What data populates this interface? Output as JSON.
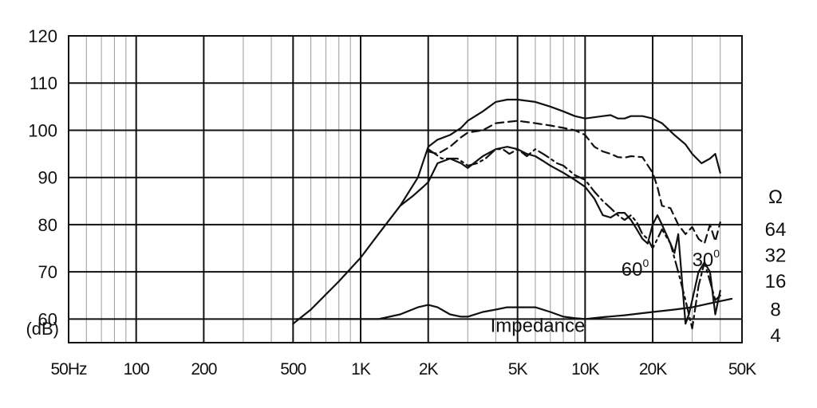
{
  "chart_data": {
    "type": "line",
    "xscale": "log",
    "xlim": [
      50,
      50000
    ],
    "ylim": [
      55,
      120
    ],
    "grid": true,
    "x_ticks": [
      {
        "value": 50,
        "label": "50Hz"
      },
      {
        "value": 100,
        "label": "100"
      },
      {
        "value": 200,
        "label": "200"
      },
      {
        "value": 500,
        "label": "500"
      },
      {
        "value": 1000,
        "label": "1K"
      },
      {
        "value": 2000,
        "label": "2K"
      },
      {
        "value": 5000,
        "label": "5K"
      },
      {
        "value": 10000,
        "label": "10K"
      },
      {
        "value": 20000,
        "label": "20K"
      },
      {
        "value": 50000,
        "label": "50K"
      }
    ],
    "y_ticks": [
      {
        "value": 120,
        "label": "120"
      },
      {
        "value": 110,
        "label": "110"
      },
      {
        "value": 100,
        "label": "100"
      },
      {
        "value": 90,
        "label": "90"
      },
      {
        "value": 80,
        "label": "80"
      },
      {
        "value": 70,
        "label": "70"
      },
      {
        "value": 60,
        "label": "60"
      }
    ],
    "y_unit_label": "(dB)",
    "impedance_axis": {
      "unit": "Ω",
      "ticks": [
        {
          "label": "64",
          "at_db": 79
        },
        {
          "label": "32",
          "at_db": 73.5
        },
        {
          "label": "16",
          "at_db": 68
        },
        {
          "label": "8",
          "at_db": 62
        },
        {
          "label": "4",
          "at_db": 56.5
        }
      ]
    },
    "series": [
      {
        "style": "solid",
        "x": [
          500,
          600,
          800,
          1000,
          1200,
          1500,
          1800,
          2000,
          2200,
          2500,
          2800,
          3000,
          3500,
          4000,
          4500,
          5000,
          6000,
          7000,
          8000,
          9000,
          10000,
          12000,
          13000,
          14000,
          15000,
          16000,
          18000,
          20000,
          22000,
          25000,
          28000,
          30000,
          33000,
          36000,
          38000,
          40000
        ],
        "y": [
          59,
          62,
          68,
          73,
          78,
          84,
          90,
          96.5,
          98,
          99,
          100.5,
          102,
          104,
          106,
          106.5,
          106.5,
          106,
          105,
          104,
          103,
          102.5,
          103,
          103.2,
          102.5,
          102.5,
          103,
          103,
          102.5,
          101.5,
          99,
          97,
          95,
          93,
          94,
          95,
          91
        ]
      },
      {
        "style": "dashed",
        "name_label": "30",
        "x": [
          2000,
          2200,
          2500,
          2800,
          3000,
          3500,
          4000,
          5000,
          6000,
          7000,
          8000,
          9000,
          10000,
          11000,
          12000,
          13000,
          14000,
          15000,
          16000,
          18000,
          20000,
          21000,
          22000,
          24000,
          26000,
          28000,
          30000,
          32000,
          34000,
          36000,
          38000,
          40000
        ],
        "y": [
          95.5,
          95,
          96.5,
          98.5,
          99.5,
          100,
          101.5,
          102,
          101.5,
          101,
          100.5,
          100,
          99,
          96.5,
          95.5,
          95,
          94.3,
          94.2,
          94.5,
          94.3,
          91,
          88,
          84,
          83.5,
          80,
          78,
          79.5,
          77,
          76,
          80,
          76.5,
          80.5
        ]
      },
      {
        "style": "dash-dot",
        "x": [
          2000,
          2300,
          2500,
          2700,
          2900,
          3000,
          3300,
          3600,
          4000,
          4300,
          4600,
          5000,
          5500,
          6000,
          6500,
          7000,
          7500,
          8000,
          9000,
          10000,
          11000,
          12000,
          13000,
          14000,
          15000,
          16000,
          17000,
          18000,
          19000,
          20000,
          21000,
          22000,
          24000,
          26000,
          28000,
          30000,
          32000,
          34000,
          36000,
          38000,
          40000
        ],
        "y": [
          96,
          94,
          94,
          94,
          93,
          92.5,
          93,
          94,
          96,
          96,
          95,
          96,
          94.5,
          96,
          95,
          94,
          93,
          92.5,
          90.5,
          89.5,
          87,
          85,
          83.5,
          82,
          81,
          82,
          80.5,
          78,
          77,
          75,
          77,
          79,
          76,
          70,
          64,
          58,
          67,
          72,
          68,
          64,
          65
        ]
      },
      {
        "style": "solid",
        "name_label": "60",
        "x": [
          1500,
          1700,
          1900,
          2000,
          2200,
          2500,
          2800,
          3000,
          3500,
          4000,
          4500,
          5000,
          5500,
          6000,
          6500,
          7000,
          8000,
          9000,
          10000,
          11000,
          12000,
          13000,
          14000,
          15000,
          16000,
          17000,
          18000,
          19000,
          20000,
          21000,
          22000,
          24000,
          25000,
          26000,
          28000,
          29000,
          30000,
          32000,
          34000,
          36000,
          38000,
          40000
        ],
        "y": [
          84,
          86,
          88,
          89,
          93,
          94,
          93,
          92,
          94.5,
          96,
          96.5,
          96,
          95,
          94.5,
          93.5,
          92.5,
          91,
          89.5,
          88,
          85.5,
          82,
          81.5,
          82.5,
          82.5,
          81,
          79,
          77,
          76,
          80,
          82,
          80,
          76,
          74,
          78,
          59,
          61,
          64,
          70,
          72,
          70,
          61,
          66
        ]
      },
      {
        "style": "solid",
        "name_label": "Impedance",
        "x": [
          520,
          700,
          1000,
          1200,
          1500,
          1800,
          2000,
          2200,
          2500,
          2800,
          3000,
          3500,
          4000,
          4500,
          5000,
          6000,
          7000,
          8000,
          9000,
          10000,
          12000,
          15000,
          20000,
          25000,
          30000,
          35000,
          40000,
          45000
        ],
        "y": [
          60,
          60,
          60,
          60,
          61,
          62.5,
          63,
          62.5,
          61,
          60.5,
          60.5,
          61.5,
          62,
          62.5,
          62.5,
          62.5,
          61.5,
          60.5,
          60.2,
          60,
          60.4,
          60.8,
          61.5,
          62,
          62.5,
          63.2,
          63.8,
          64.3
        ]
      }
    ],
    "annotations": [
      {
        "text": "Impedance",
        "x": 10000,
        "y": 57.3,
        "anchor": "end"
      },
      {
        "text": "60",
        "sup": "0",
        "x": 14500,
        "y": 69.2,
        "anchor": "start"
      },
      {
        "text": "30",
        "sup": "0",
        "x": 30000,
        "y": 71.2,
        "anchor": "start"
      }
    ]
  }
}
